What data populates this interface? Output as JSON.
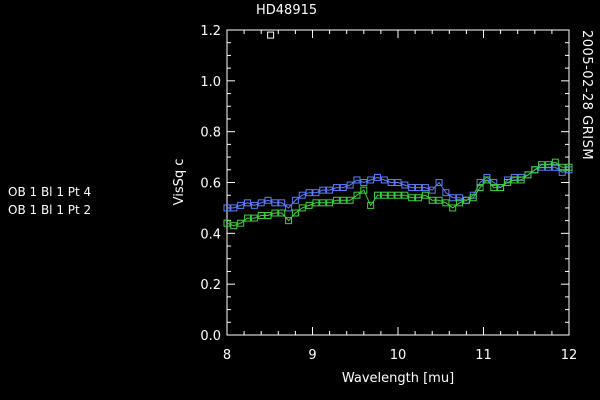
{
  "chart_data": {
    "type": "line",
    "title": "HD48915",
    "side_label": "2005-02-28 GRISM",
    "xlabel": "Wavelength [mu]",
    "ylabel": "VisSq c",
    "xlim": [
      8,
      12
    ],
    "ylim": [
      0,
      1.2
    ],
    "x_ticks": [
      "8",
      "9",
      "10",
      "11",
      "12"
    ],
    "y_ticks": [
      "0.0",
      "0.2",
      "0.4",
      "0.6",
      "0.8",
      "1.0",
      "1.2"
    ],
    "grid": false,
    "legend_position": "left",
    "x": [
      8.0,
      8.08,
      8.16,
      8.24,
      8.32,
      8.4,
      8.48,
      8.56,
      8.64,
      8.72,
      8.8,
      8.88,
      8.96,
      9.04,
      9.12,
      9.2,
      9.28,
      9.36,
      9.44,
      9.52,
      9.6,
      9.68,
      9.76,
      9.84,
      9.92,
      10.0,
      10.08,
      10.16,
      10.24,
      10.32,
      10.4,
      10.48,
      10.56,
      10.64,
      10.72,
      10.8,
      10.88,
      10.96,
      11.04,
      11.12,
      11.2,
      11.28,
      11.36,
      11.44,
      11.52,
      11.6,
      11.68,
      11.76,
      11.84,
      11.92,
      12.0
    ],
    "series": [
      {
        "name": "OB 1 Bl 1 Pt 4",
        "color": "#5a7dff",
        "values": [
          0.5,
          0.5,
          0.51,
          0.52,
          0.51,
          0.52,
          0.53,
          0.52,
          0.52,
          0.5,
          0.53,
          0.55,
          0.56,
          0.56,
          0.57,
          0.57,
          0.58,
          0.58,
          0.59,
          0.61,
          0.6,
          0.61,
          0.62,
          0.61,
          0.6,
          0.6,
          0.59,
          0.58,
          0.58,
          0.58,
          0.57,
          0.6,
          0.56,
          0.54,
          0.54,
          0.53,
          0.55,
          0.6,
          0.62,
          0.6,
          0.58,
          0.61,
          0.62,
          0.62,
          0.63,
          0.65,
          0.66,
          0.66,
          0.66,
          0.64,
          0.65
        ]
      },
      {
        "name": "OB 1 Bl 1 Pt 2",
        "color": "#3cd23c",
        "values": [
          0.44,
          0.43,
          0.44,
          0.46,
          0.46,
          0.47,
          0.47,
          0.48,
          0.48,
          0.45,
          0.48,
          0.5,
          0.51,
          0.52,
          0.52,
          0.52,
          0.53,
          0.53,
          0.53,
          0.55,
          0.57,
          0.51,
          0.55,
          0.55,
          0.55,
          0.55,
          0.55,
          0.54,
          0.54,
          0.55,
          0.53,
          0.53,
          0.52,
          0.5,
          0.52,
          0.53,
          0.54,
          0.58,
          0.61,
          0.58,
          0.58,
          0.6,
          0.61,
          0.61,
          0.63,
          0.65,
          0.67,
          0.67,
          0.68,
          0.66,
          0.66
        ]
      }
    ],
    "outlier_points": [
      {
        "x": 8.51,
        "y": 1.18,
        "color": "#ffffff"
      }
    ]
  },
  "legend": [
    {
      "label": "OB 1 Bl 1 Pt 4",
      "color": "#5a7dff"
    },
    {
      "label": "OB 1 Bl 1 Pt 2",
      "color": "#3cd23c"
    }
  ],
  "colors": {
    "background": "#000000",
    "axes": "#ffffff",
    "text": "#ffffff"
  }
}
